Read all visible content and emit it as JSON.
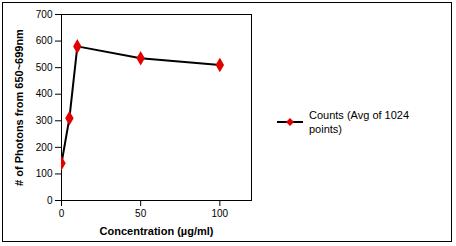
{
  "chart_data": {
    "type": "line",
    "x_label": "Concentration (µg/ml)",
    "y_label": "# of Photons from 650~699nm",
    "x": [
      0,
      5,
      10,
      50,
      100
    ],
    "series": [
      {
        "name": "Counts (Avg of 1024 points)",
        "color": "#e00000",
        "marker": "diamond",
        "line_style": "solid",
        "values": [
          140,
          310,
          580,
          535,
          510
        ]
      }
    ],
    "xlim": [
      0,
      120
    ],
    "xticks": [
      0,
      50,
      100
    ],
    "ylim": [
      0,
      700
    ],
    "yticks": [
      0,
      100,
      200,
      300,
      400,
      500,
      600,
      700
    ],
    "grid": false,
    "legend": "right"
  }
}
